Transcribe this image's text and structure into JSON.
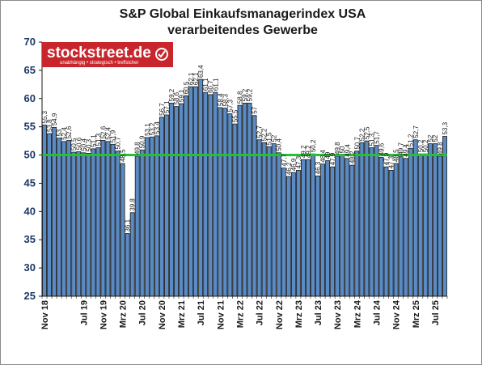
{
  "logo": {
    "name": "stockstreet.de",
    "tagline": "unabhängig • strategisch • treffsicher",
    "color": "#c8262c"
  },
  "colors": {
    "bar_fill": "#5b8bc4",
    "bar_stroke": "#1a1a1a",
    "reference_line": "#22c232",
    "axis": "#1f3864"
  },
  "chart_data": {
    "type": "bar",
    "title": "S&P Global Einkaufsmanagerindex USA",
    "subtitle": "verarbeitendes Gewerbe",
    "xlabel": "",
    "ylabel": "",
    "ylim": [
      25,
      70
    ],
    "yticks": [
      25,
      30,
      35,
      40,
      45,
      50,
      55,
      60,
      65,
      70
    ],
    "grid": false,
    "legend": "none",
    "reference_line": 50,
    "x_tick_labels": [
      {
        "label": "Nov 18",
        "index": 0
      },
      {
        "label": "Jul 19",
        "index": 8
      },
      {
        "label": "Nov 19",
        "index": 12
      },
      {
        "label": "Mrz 20",
        "index": 16
      },
      {
        "label": "Jul 20",
        "index": 20
      },
      {
        "label": "Nov 20",
        "index": 24
      },
      {
        "label": "Mrz 21",
        "index": 28
      },
      {
        "label": "Jul 21",
        "index": 32
      },
      {
        "label": "Nov 21",
        "index": 36
      },
      {
        "label": "Mrz 22",
        "index": 40
      },
      {
        "label": "Jul 22",
        "index": 44
      },
      {
        "label": "Nov 22",
        "index": 48
      },
      {
        "label": "Mrz 23",
        "index": 52
      },
      {
        "label": "Jul 23",
        "index": 56
      },
      {
        "label": "Nov 23",
        "index": 60
      },
      {
        "label": "Mrz 24",
        "index": 64
      },
      {
        "label": "Jul 24",
        "index": 68
      },
      {
        "label": "Nov 24",
        "index": 72
      },
      {
        "label": "Mrz 25",
        "index": 76
      },
      {
        "label": "Jul 25",
        "index": 80
      }
    ],
    "series": [
      {
        "values": [
          55.3,
          53.8,
          54.9,
          53.0,
          52.4,
          52.6,
          50.5,
          50.6,
          50.4,
          50.3,
          51.1,
          51.3,
          52.6,
          52.4,
          51.9,
          50.7,
          48.5,
          36.1,
          39.8,
          49.8,
          50.9,
          53.1,
          53.2,
          53.4,
          56.7,
          57.1,
          59.2,
          58.6,
          59.1,
          60.5,
          62.1,
          62.1,
          63.4,
          61.1,
          60.7,
          61.1,
          58.4,
          58.3,
          57.3,
          55.5,
          58.8,
          59.2,
          59.2,
          57.0,
          52.7,
          52.2,
          51.5,
          52.0,
          50.4,
          47.7,
          46.2,
          46.9,
          47.3,
          49.2,
          49.2,
          50.2,
          46.3,
          48.4,
          49.0,
          47.9,
          49.8,
          50.0,
          49.4,
          48.2,
          50.7,
          52.2,
          52.5,
          51.3,
          51.7,
          49.6,
          47.9,
          47.3,
          48.5,
          49.7,
          49.4,
          51.2,
          52.7,
          50.2,
          50.2,
          52.0,
          52.0,
          49.8,
          53.3
        ]
      }
    ],
    "data_labels": [
      "55,3",
      "53,8",
      "54,9",
      "53",
      "52,4",
      "52,6",
      "50,5",
      "50,6",
      "50,4",
      "50,3",
      "51,1",
      "51,3",
      "52,6",
      "52,4",
      "51,9",
      "50,7",
      "48,5",
      "36,1",
      "39,8",
      "49,8",
      "50,9",
      "53,1",
      "53,2",
      "53,4",
      "56,7",
      "57,1",
      "59,2",
      "58,6",
      "59,1",
      "60,5",
      "62,1",
      "62,1",
      "63,4",
      "61,1",
      "60,7",
      "61,1",
      "58,4",
      "58,3",
      "57,3",
      "55,5",
      "58,8",
      "59,2",
      "59,2",
      "57",
      "52,7",
      "52,2",
      "51,5",
      "52",
      "50,4",
      "47,7",
      "46,2",
      "46,9",
      "47,3",
      "49,2",
      "49,2",
      "50,2",
      "46,3",
      "48,4",
      "49",
      "47,9",
      "49,8",
      "50",
      "49,4",
      "48,2",
      "50,7",
      "52,2",
      "52,5",
      "51,3",
      "51,7",
      "49,6",
      "47,9",
      "47,3",
      "48,5",
      "49,7",
      "49,4",
      "51,2",
      "52,7",
      "50,2",
      "50,2",
      "52",
      "52",
      "49,8",
      "53,3"
    ]
  }
}
